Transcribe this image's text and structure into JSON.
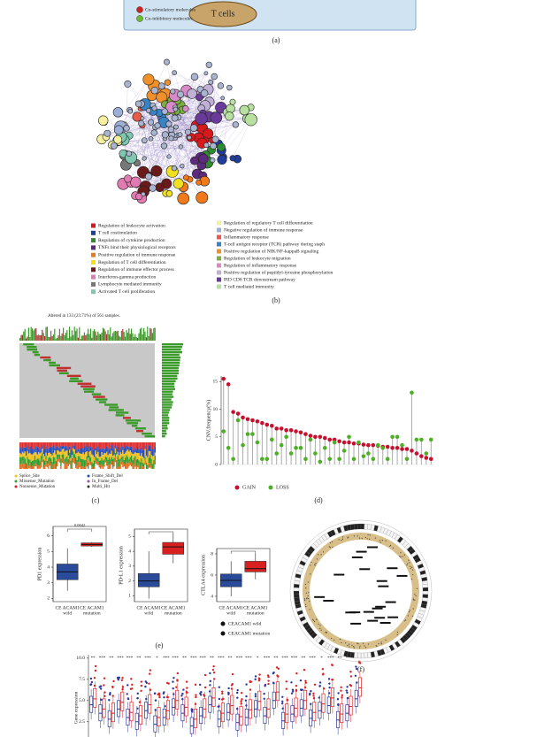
{
  "panel_a": {
    "legend": [
      {
        "label": "Co-stimulatory molecules",
        "color": "#d42020"
      },
      {
        "label": "Co-inhibitory molecules",
        "color": "#6cbf2a"
      }
    ],
    "cell_label": "T cells",
    "label": "(a)"
  },
  "panel_b": {
    "legend_left": [
      {
        "label": "Regulation of leukocyte activation",
        "color": "#d7191c"
      },
      {
        "label": "T cell costimulation",
        "color": "#1f3e9c"
      },
      {
        "label": "Regulation of cytokine production",
        "color": "#2e8b2e"
      },
      {
        "label": "TNFs bind their physiological receptors",
        "color": "#5e2a7e"
      },
      {
        "label": "Positive regulation of immune response",
        "color": "#f07a1a"
      },
      {
        "label": "Regulation of T cell differentiation",
        "color": "#f0e020"
      },
      {
        "label": "Regulation of immune effector process",
        "color": "#6b1a1a"
      },
      {
        "label": "Interferon-gamma production",
        "color": "#e07ab0"
      },
      {
        "label": "Lymphocyte mediated immunity",
        "color": "#777777"
      },
      {
        "label": "Activated T cell proliferation",
        "color": "#7fc7b0"
      }
    ],
    "legend_right": [
      {
        "label": "Regulation of regulatory T cell differentiation",
        "color": "#f5efa0"
      },
      {
        "label": "Negative regulation of immune response",
        "color": "#9ab0d8"
      },
      {
        "label": "Inflammatory response",
        "color": "#e85a4a"
      },
      {
        "label": "T-cell antigen receptor (TCR) pathway during staph",
        "color": "#3a82c4"
      },
      {
        "label": "Positive regulation of NIK/NF-kappaB signaling",
        "color": "#f0902a"
      },
      {
        "label": "Regulation of leukocyte migration",
        "color": "#7ab040"
      },
      {
        "label": "Regulation of inflammatory response",
        "color": "#d88ac8"
      },
      {
        "label": "Positive regulation of peptidyl-tyrosine phosphorylation",
        "color": "#c0b0d8"
      },
      {
        "label": "PID CD8 TCR downstream pathway",
        "color": "#6a3a9a"
      },
      {
        "label": "T cell mediated immunity",
        "color": "#b8e0a0"
      }
    ],
    "label": "(b)"
  },
  "panel_c": {
    "title": "Altered in 133 (23.71%) of 561 samples.",
    "legend": [
      "Splice_Site",
      "Missense_Mutation",
      "Nonsense_Mutation",
      "Frame_Shift_Del",
      "In_Frame_Del",
      "Multi_Hit"
    ],
    "label": "(c)"
  },
  "panel_e": {
    "legend": [
      "CEACAM1 wild",
      "CEACAM1 mutation"
    ],
    "label": "(e)"
  },
  "panel_f": {
    "label": "(f)"
  },
  "chart_data": [
    {
      "type": "lollipop",
      "y_label": "CNV.frequency(%)",
      "ylim": [
        0,
        16
      ],
      "yticks": [
        0,
        5,
        10,
        15
      ],
      "series": [
        {
          "name": "GAIN",
          "color": "#c8102e",
          "values": [
            15.5,
            14.5,
            9.5,
            9.2,
            8.5,
            8.2,
            8.0,
            7.8,
            7.5,
            7.2,
            7.0,
            6.5,
            6.5,
            6.2,
            6.2,
            6.0,
            5.8,
            5.5,
            5.2,
            5.0,
            5.0,
            4.8,
            4.5,
            4.5,
            4.2,
            4.0,
            4.0,
            3.8,
            3.8,
            3.6,
            3.5,
            3.5,
            3.4,
            3.2,
            3.2,
            3.0,
            3.0,
            2.8,
            2.8,
            2.5,
            2.0,
            1.5,
            1.2,
            1.0
          ]
        },
        {
          "name": "LOSS",
          "color": "#4caf24",
          "values": [
            6.0,
            3.0,
            1.0,
            8.0,
            3.5,
            5.5,
            5.5,
            4.0,
            1.0,
            1.0,
            4.5,
            2.0,
            3.5,
            5.0,
            2.0,
            3.0,
            3.0,
            1.0,
            4.5,
            2.0,
            0.5,
            3.0,
            1.0,
            4.0,
            1.0,
            2.5,
            5.0,
            1.0,
            4.0,
            1.5,
            2.0,
            1.0,
            3.5,
            3.0,
            1.0,
            5.0,
            5.0,
            3.5,
            1.0,
            13.0,
            4.5,
            4.5,
            2.0,
            4.5
          ]
        }
      ],
      "panel_label": "(d)"
    },
    {
      "type": "box",
      "y_label": "PD1 expression",
      "categories": [
        [
          "CE ACAM1",
          "wild"
        ],
        [
          "CE ACAM1",
          "mutation"
        ]
      ],
      "colors": [
        "#2a4a9a",
        "#d92020"
      ],
      "min": [
        2.5,
        5.3
      ],
      "q1": [
        3.2,
        5.35
      ],
      "median": [
        3.7,
        5.45
      ],
      "q3": [
        4.2,
        5.55
      ],
      "max": [
        5.2,
        5.6
      ],
      "ylim": [
        1.8,
        6.6
      ],
      "yticks": [
        2,
        3,
        4,
        5,
        6
      ],
      "annotation": "0.0042"
    },
    {
      "type": "box",
      "y_label": "PD-L1 expression",
      "categories": [
        [
          "CE ACAM1",
          "wild"
        ],
        [
          "CE ACAM1",
          "mutation"
        ]
      ],
      "colors": [
        "#2a4a9a",
        "#d92020"
      ],
      "min": [
        0.8,
        3.2
      ],
      "q1": [
        1.6,
        3.8
      ],
      "median": [
        2.0,
        4.3
      ],
      "q3": [
        2.5,
        4.6
      ],
      "max": [
        4.0,
        5.2
      ],
      "ylim": [
        0.6,
        5.5
      ],
      "yticks": [
        1,
        2,
        3,
        4,
        5
      ]
    },
    {
      "type": "box",
      "y_label": "CTLA4 expression",
      "categories": [
        [
          "CE ACAM1",
          "wild"
        ],
        [
          "CE ACAM1",
          "mutation"
        ]
      ],
      "colors": [
        "#2a4a9a",
        "#d92020"
      ],
      "min": [
        4.0,
        5.6
      ],
      "q1": [
        4.9,
        6.3
      ],
      "median": [
        5.5,
        6.6
      ],
      "q3": [
        6.1,
        7.3
      ],
      "max": [
        7.3,
        8.0
      ],
      "ylim": [
        3.5,
        8.5
      ],
      "yticks": [
        4,
        6,
        8
      ]
    },
    {
      "type": "grouped_box",
      "y_label": "Gene expression",
      "ylim": [
        0.7,
        10.4
      ],
      "yticks": [
        {
          "value": 2.5,
          "label": "2.5"
        },
        {
          "value": 5,
          "label": "5.0"
        },
        7.5,
        {
          "value": 10,
          "label": "10.0"
        }
      ],
      "sig_labels": [
        "**",
        "***",
        "**",
        "***",
        "***",
        "**",
        "***",
        "*",
        "***",
        "***",
        "**",
        "***",
        "***",
        "**",
        "***",
        "**",
        "***",
        "***",
        "*",
        "***",
        "**",
        "***",
        "***",
        "**",
        "***",
        "*",
        "***",
        "**",
        "***",
        "***"
      ],
      "series": [
        {
          "color": "#2a3aa0",
          "q1": [
            3.6,
            2.6,
            1.9,
            3.1,
            2.1,
            1.6,
            2.9,
            1.3,
            2.1,
            3.3,
            2.6,
            1.1,
            2.3,
            3.6,
            1.9,
            2.7,
            1.5,
            2.1,
            3.1,
            2.3,
            4.1,
            1.7,
            2.5,
            3.2,
            2.0,
            2.9,
            3.5,
            1.8,
            2.6,
            4.3
          ],
          "values": [
            4.5,
            3.5,
            2.8,
            4.0,
            3.0,
            2.5,
            3.8,
            2.2,
            3.0,
            4.2,
            3.5,
            2.0,
            3.2,
            4.5,
            2.8,
            3.6,
            2.4,
            3.0,
            4.0,
            3.2,
            5.0,
            2.6,
            3.4,
            4.1,
            2.9,
            3.8,
            4.4,
            2.7,
            3.5,
            5.2
          ],
          "q3": [
            5.5,
            4.5,
            3.8,
            5.0,
            4.0,
            3.5,
            4.8,
            3.2,
            4.0,
            5.2,
            4.5,
            3.0,
            4.2,
            5.5,
            3.8,
            4.6,
            3.4,
            4.0,
            5.0,
            4.2,
            6.0,
            3.6,
            4.4,
            5.1,
            3.9,
            4.8,
            5.4,
            3.7,
            4.5,
            6.2
          ]
        },
        {
          "color": "#e02020",
          "q1": [
            4.2,
            3.0,
            2.5,
            3.8,
            2.6,
            2.2,
            3.5,
            2.0,
            2.8,
            4.0,
            3.2,
            1.8,
            3.0,
            4.3,
            2.5,
            3.4,
            2.1,
            2.9,
            3.9,
            3.0,
            5.0,
            2.4,
            3.1,
            4.0,
            2.6,
            3.6,
            4.3,
            2.4,
            3.3,
            5.5
          ],
          "values": [
            5.2,
            4.0,
            3.5,
            4.8,
            3.6,
            3.2,
            4.5,
            3.0,
            3.8,
            5.0,
            4.2,
            2.8,
            4.0,
            5.3,
            3.5,
            4.4,
            3.1,
            3.9,
            4.9,
            4.0,
            6.0,
            3.4,
            4.1,
            5.0,
            3.6,
            4.6,
            5.3,
            3.4,
            4.3,
            6.5
          ],
          "q3": [
            6.4,
            5.2,
            4.7,
            6.0,
            4.8,
            4.4,
            5.7,
            4.2,
            5.0,
            6.2,
            5.4,
            4.0,
            5.2,
            6.5,
            4.7,
            5.6,
            4.3,
            5.1,
            6.1,
            5.2,
            7.2,
            4.6,
            5.3,
            6.2,
            4.8,
            5.8,
            6.5,
            4.6,
            5.5,
            7.7
          ]
        }
      ]
    }
  ]
}
